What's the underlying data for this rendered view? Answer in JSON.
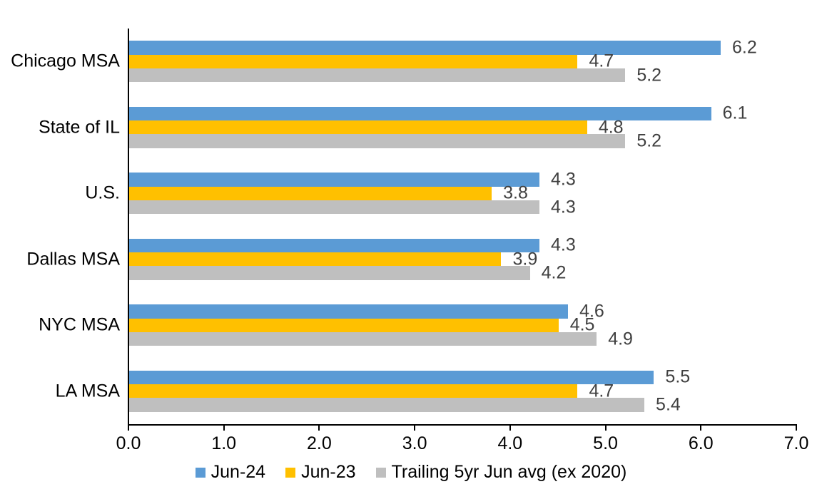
{
  "chart_data": {
    "type": "bar",
    "orientation": "horizontal",
    "title": "",
    "xlabel": "",
    "ylabel": "",
    "grid": false,
    "legend_position": "bottom",
    "data_labels": true,
    "categories": [
      "Chicago MSA",
      "State of IL",
      "U.S.",
      "Dallas MSA",
      "NYC MSA",
      "LA MSA"
    ],
    "series": [
      {
        "name": "Jun-24",
        "color": "#5B9BD5",
        "values": [
          6.2,
          6.1,
          4.3,
          4.3,
          4.6,
          5.5
        ]
      },
      {
        "name": "Jun-23",
        "color": "#FFC000",
        "values": [
          4.7,
          4.8,
          3.8,
          3.9,
          4.5,
          4.7
        ]
      },
      {
        "name": "Trailing 5yr Jun avg (ex 2020)",
        "color": "#BFBFBF",
        "values": [
          5.2,
          5.2,
          4.3,
          4.2,
          4.9,
          5.4
        ]
      }
    ],
    "xlim": [
      0,
      7
    ],
    "xticks": [
      "0.0",
      "1.0",
      "2.0",
      "3.0",
      "4.0",
      "5.0",
      "6.0",
      "7.0"
    ]
  },
  "colors": {
    "background": "#FFFFFF",
    "axis_line": "#000000",
    "axis_text": "#000000",
    "data_label_text": "#404040"
  }
}
